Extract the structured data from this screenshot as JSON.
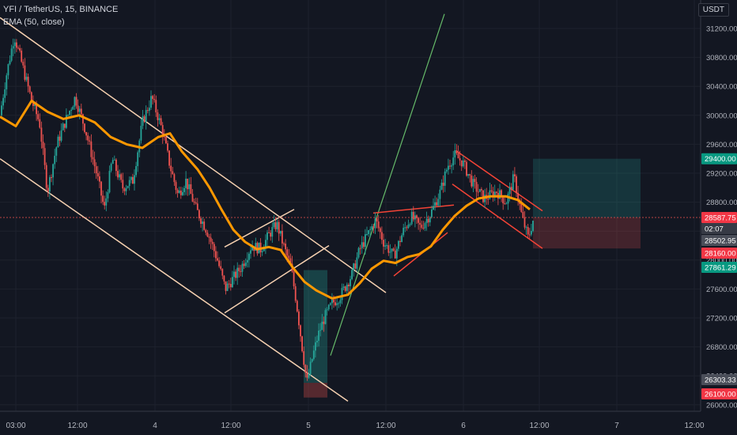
{
  "header": {
    "symbol_line": "YFI / TetherUS, 15, BINANCE",
    "indicator": "EMA (50, close)"
  },
  "currency_button": "USDT",
  "chart_data": {
    "type": "candlestick",
    "symbol": "YFI / TetherUS",
    "interval": "15",
    "exchange": "BINANCE",
    "indicator": "EMA (50, close)",
    "colors": {
      "up": "#26a69a",
      "down": "#ef5350",
      "ema": "#ff9800",
      "background": "#131722",
      "grid": "#1e222d"
    },
    "ylim": [
      26000,
      31400
    ],
    "y_ticks": [
      31200,
      30800,
      30400,
      30000,
      29600,
      29200,
      28800,
      28400,
      28000,
      27600,
      27200,
      26800,
      26400,
      26000
    ],
    "x_ticks": [
      "03:00",
      "12:00",
      "4",
      "12:00",
      "5",
      "12:00",
      "6",
      "12:00",
      "7",
      "12:00"
    ],
    "price_labels": [
      {
        "text": "29400.00",
        "value": 29400,
        "kind": "target"
      },
      {
        "text": "28587.75",
        "value": 28587.75,
        "kind": "last"
      },
      {
        "text": "02:07",
        "value": 28440,
        "kind": "countdown"
      },
      {
        "text": "28502.95",
        "value": 28502.95,
        "kind": "level"
      },
      {
        "text": "28160.00",
        "value": 28160,
        "kind": "stop"
      },
      {
        "text": "27861.29",
        "value": 27861.29,
        "kind": "entry"
      },
      {
        "text": "26303.33",
        "value": 26303.33,
        "kind": "level"
      },
      {
        "text": "26100.00",
        "value": 26100,
        "kind": "stop"
      }
    ],
    "price_path": [
      [
        0,
        30000
      ],
      [
        8,
        30550
      ],
      [
        18,
        31100
      ],
      [
        28,
        30700
      ],
      [
        40,
        30200
      ],
      [
        50,
        29900
      ],
      [
        60,
        28950
      ],
      [
        72,
        29600
      ],
      [
        82,
        29900
      ],
      [
        95,
        30250
      ],
      [
        108,
        29800
      ],
      [
        122,
        29200
      ],
      [
        132,
        28700
      ],
      [
        142,
        29400
      ],
      [
        155,
        29000
      ],
      [
        168,
        29100
      ],
      [
        180,
        29900
      ],
      [
        192,
        30250
      ],
      [
        205,
        29800
      ],
      [
        215,
        29300
      ],
      [
        225,
        28900
      ],
      [
        235,
        29100
      ],
      [
        248,
        28700
      ],
      [
        262,
        28400
      ],
      [
        275,
        28000
      ],
      [
        285,
        27600
      ],
      [
        295,
        27750
      ],
      [
        305,
        27900
      ],
      [
        318,
        28200
      ],
      [
        330,
        28150
      ],
      [
        340,
        28350
      ],
      [
        350,
        28500
      ],
      [
        360,
        28150
      ],
      [
        368,
        27900
      ],
      [
        375,
        27400
      ],
      [
        382,
        26800
      ],
      [
        388,
        26300
      ],
      [
        395,
        26650
      ],
      [
        402,
        26950
      ],
      [
        410,
        27200
      ],
      [
        420,
        27400
      ],
      [
        430,
        27500
      ],
      [
        445,
        27800
      ],
      [
        455,
        28150
      ],
      [
        465,
        28350
      ],
      [
        475,
        28550
      ],
      [
        485,
        28250
      ],
      [
        498,
        28050
      ],
      [
        510,
        28400
      ],
      [
        520,
        28600
      ],
      [
        532,
        28450
      ],
      [
        545,
        28650
      ],
      [
        557,
        28950
      ],
      [
        566,
        29300
      ],
      [
        575,
        29450
      ],
      [
        585,
        29350
      ],
      [
        598,
        29050
      ],
      [
        612,
        28850
      ],
      [
        628,
        28950
      ],
      [
        640,
        28800
      ],
      [
        650,
        29150
      ],
      [
        660,
        28600
      ],
      [
        668,
        28300
      ],
      [
        675,
        28588
      ]
    ],
    "ema_path": [
      [
        0,
        29980
      ],
      [
        20,
        29850
      ],
      [
        40,
        30200
      ],
      [
        60,
        30050
      ],
      [
        80,
        29950
      ],
      [
        100,
        30000
      ],
      [
        120,
        29900
      ],
      [
        140,
        29700
      ],
      [
        160,
        29600
      ],
      [
        180,
        29550
      ],
      [
        200,
        29700
      ],
      [
        215,
        29750
      ],
      [
        230,
        29500
      ],
      [
        250,
        29250
      ],
      [
        265,
        29000
      ],
      [
        280,
        28700
      ],
      [
        295,
        28420
      ],
      [
        310,
        28250
      ],
      [
        325,
        28150
      ],
      [
        340,
        28180
      ],
      [
        355,
        28140
      ],
      [
        370,
        27900
      ],
      [
        385,
        27700
      ],
      [
        400,
        27580
      ],
      [
        420,
        27470
      ],
      [
        440,
        27520
      ],
      [
        455,
        27680
      ],
      [
        470,
        27880
      ],
      [
        485,
        27990
      ],
      [
        500,
        27960
      ],
      [
        515,
        28040
      ],
      [
        530,
        28080
      ],
      [
        545,
        28190
      ],
      [
        560,
        28420
      ],
      [
        575,
        28610
      ],
      [
        590,
        28750
      ],
      [
        605,
        28850
      ],
      [
        620,
        28880
      ],
      [
        640,
        28880
      ],
      [
        655,
        28830
      ],
      [
        670,
        28700
      ]
    ]
  }
}
